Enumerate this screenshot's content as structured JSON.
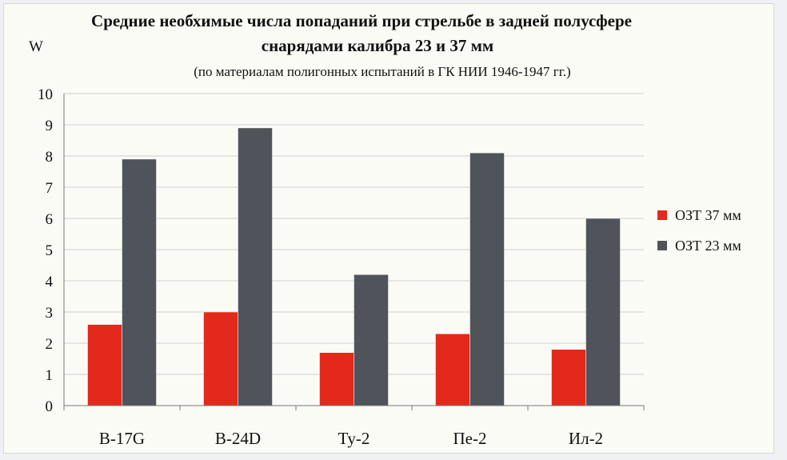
{
  "chart_data": {
    "type": "bar",
    "title_line1": "Средние необхимые числа попаданий при стрельбе в задней полусфере",
    "title_line2": "снарядами калибра 23 и 37 мм",
    "subtitle": "(по материалам полигонных испытаний в ГК НИИ 1946-1947 гг.)",
    "ylabel": "W",
    "xlabel": "",
    "ylim": [
      0,
      10
    ],
    "yticks": [
      0,
      1,
      2,
      3,
      4,
      5,
      6,
      7,
      8,
      9,
      10
    ],
    "grid": true,
    "legend_position": "right",
    "categories": [
      "B-17G",
      "B-24D",
      "Ту-2",
      "Пе-2",
      "Ил-2"
    ],
    "series": [
      {
        "name": "ОЗТ 37 мм",
        "color": "#e3291b",
        "values": [
          2.6,
          3.0,
          1.7,
          2.3,
          1.8
        ]
      },
      {
        "name": "ОЗТ 23 мм",
        "color": "#50545a",
        "values": [
          7.9,
          8.9,
          4.2,
          8.1,
          6.0
        ]
      }
    ]
  }
}
